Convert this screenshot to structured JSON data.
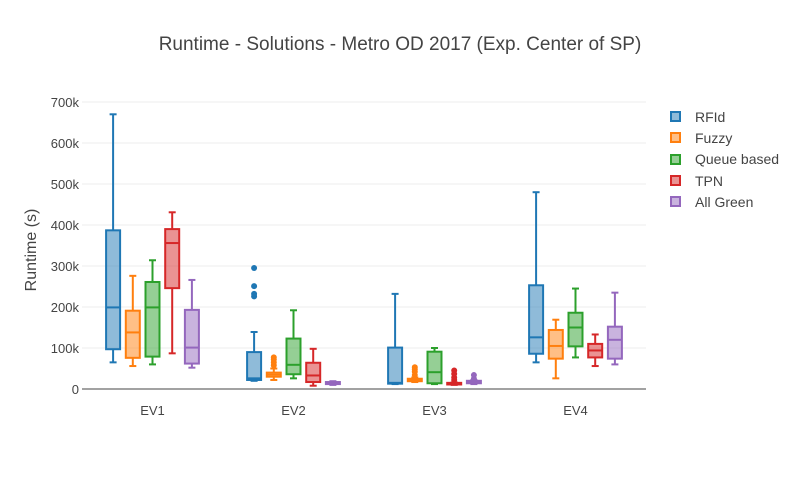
{
  "chart_data": {
    "type": "box",
    "title": "Runtime - Solutions - Metro OD 2017 (Exp. Center of SP)",
    "xlabel": "",
    "ylabel": "Runtime (s)",
    "ylim": [
      0,
      700000
    ],
    "yticks": [
      {
        "value": 0,
        "label": "0"
      },
      {
        "value": 100000,
        "label": "100k"
      },
      {
        "value": 200000,
        "label": "200k"
      },
      {
        "value": 300000,
        "label": "300k"
      },
      {
        "value": 400000,
        "label": "400k"
      },
      {
        "value": 500000,
        "label": "500k"
      },
      {
        "value": 600000,
        "label": "600k"
      },
      {
        "value": 700000,
        "label": "700k"
      }
    ],
    "grid": true,
    "legend_position": "right",
    "categories": [
      "EV1",
      "EV2",
      "EV3",
      "EV4"
    ],
    "series": [
      {
        "name": "RFId",
        "color": "#1f77b4",
        "boxes": [
          {
            "min": 65000,
            "q1": 97000,
            "median": 199000,
            "q3": 387000,
            "max": 670000,
            "outliers": []
          },
          {
            "min": 20000,
            "q1": 22000,
            "median": 26000,
            "q3": 90000,
            "max": 139000,
            "outliers": [
              226000,
              232000,
              251000,
              295000
            ]
          },
          {
            "min": 12000,
            "q1": 13000,
            "median": 15000,
            "q3": 101000,
            "max": 232000,
            "outliers": []
          },
          {
            "min": 65000,
            "q1": 86000,
            "median": 126000,
            "q3": 253000,
            "max": 480000,
            "outliers": []
          }
        ]
      },
      {
        "name": "Fuzzy",
        "color": "#ff7f0e",
        "boxes": [
          {
            "min": 56000,
            "q1": 76000,
            "median": 138000,
            "q3": 191000,
            "max": 276000,
            "outliers": []
          },
          {
            "min": 22000,
            "q1": 30000,
            "median": 35000,
            "q3": 40000,
            "max": 50000,
            "outliers": [
              58000,
              65000,
              72000,
              77000
            ]
          },
          {
            "min": 17000,
            "q1": 19000,
            "median": 21000,
            "q3": 25000,
            "max": 28000,
            "outliers": [
              34000,
              42000,
              48000,
              53000
            ]
          },
          {
            "min": 26000,
            "q1": 74000,
            "median": 105000,
            "q3": 144000,
            "max": 169000,
            "outliers": []
          }
        ]
      },
      {
        "name": "Queue based",
        "color": "#2ca02c",
        "boxes": [
          {
            "min": 60000,
            "q1": 79000,
            "median": 199000,
            "q3": 261000,
            "max": 314000,
            "outliers": []
          },
          {
            "min": 26000,
            "q1": 36000,
            "median": 59000,
            "q3": 123000,
            "max": 192000,
            "outliers": []
          },
          {
            "min": 12000,
            "q1": 14000,
            "median": 41000,
            "q3": 91000,
            "max": 100000,
            "outliers": []
          },
          {
            "min": 77000,
            "q1": 104000,
            "median": 150000,
            "q3": 186000,
            "max": 245000,
            "outliers": []
          }
        ]
      },
      {
        "name": "TPN",
        "color": "#d62728",
        "boxes": [
          {
            "min": 87000,
            "q1": 246000,
            "median": 356000,
            "q3": 390000,
            "max": 431000,
            "outliers": []
          },
          {
            "min": 8000,
            "q1": 17000,
            "median": 33000,
            "q3": 64000,
            "max": 98000,
            "outliers": []
          },
          {
            "min": 10000,
            "q1": 11000,
            "median": 13000,
            "q3": 15000,
            "max": 16000,
            "outliers": [
              22000,
              28000,
              37000,
              45000
            ]
          },
          {
            "min": 56000,
            "q1": 77000,
            "median": 94000,
            "q3": 110000,
            "max": 133000,
            "outliers": []
          }
        ]
      },
      {
        "name": "All Green",
        "color": "#9467bd",
        "boxes": [
          {
            "min": 52000,
            "q1": 62000,
            "median": 101000,
            "q3": 193000,
            "max": 266000,
            "outliers": []
          },
          {
            "min": 10000,
            "q1": 12000,
            "median": 14000,
            "q3": 17000,
            "max": 19000,
            "outliers": []
          },
          {
            "min": 12000,
            "q1": 14000,
            "median": 17000,
            "q3": 20000,
            "max": 22000,
            "outliers": [
              25000,
              34000
            ]
          },
          {
            "min": 60000,
            "q1": 74000,
            "median": 120000,
            "q3": 152000,
            "max": 235000,
            "outliers": []
          }
        ]
      }
    ]
  }
}
